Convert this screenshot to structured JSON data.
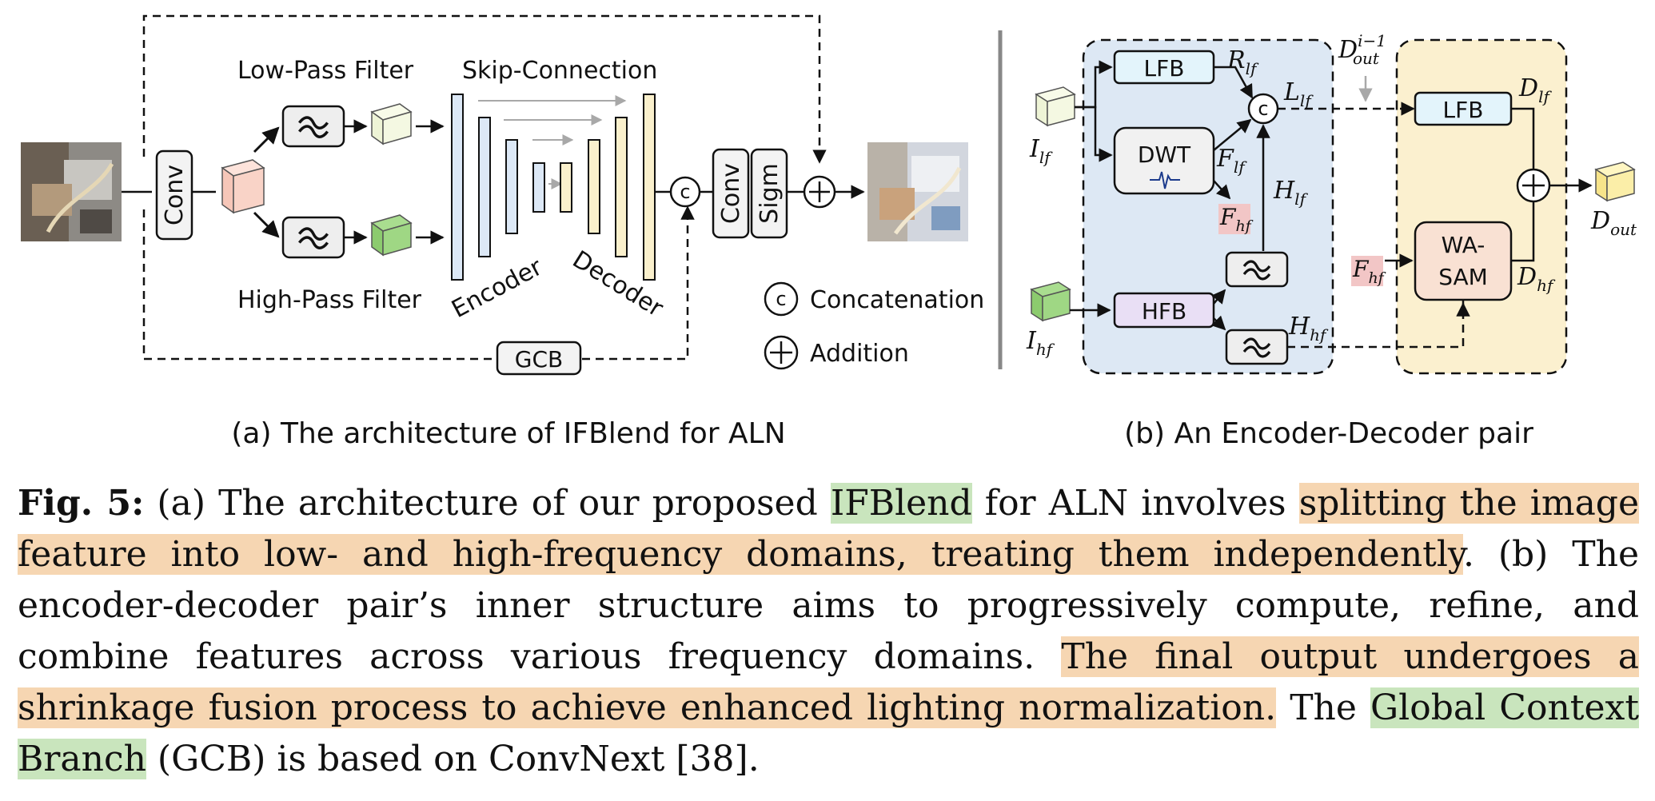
{
  "figure": {
    "panel_a": {
      "labels": {
        "conv": "Conv",
        "low_pass": "Low-Pass Filter",
        "high_pass": "High-Pass Filter",
        "skip": "Skip-Connection",
        "encoder": "Encoder",
        "decoder": "Decoder",
        "concat_symbol": "c",
        "conv2": "Conv",
        "sigm": "Sigm",
        "gcb": "GCB"
      },
      "legend": {
        "concatenation": "Concatenation",
        "addition": "Addition"
      },
      "subcaption": "(a) The architecture of IFBlend for ALN"
    },
    "panel_b": {
      "labels": {
        "lfb_enc": "LFB",
        "dwt": "DWT",
        "hfb": "HFB",
        "lfb_dec": "LFB",
        "wasam_line1": "WA-",
        "wasam_line2": "SAM",
        "concat_symbol": "c"
      },
      "symbols": {
        "I_lf": "I",
        "I_lf_sub": "lf",
        "I_hf": "I",
        "I_hf_sub": "hf",
        "R_lf": "R",
        "R_lf_sub": "lf",
        "L_lf": "L",
        "L_lf_sub": "lf",
        "F_lf": "F",
        "F_lf_sub": "lf",
        "F_hf": "F",
        "F_hf_sub": "hf",
        "H_lf": "H",
        "H_lf_sub": "lf",
        "H_hf": "H",
        "H_hf_sub": "hf",
        "D_out_prev": "D",
        "D_out_prev_sup": "i−1",
        "D_out_prev_sub": "out",
        "D_lf": "D",
        "D_lf_sub": "lf",
        "D_hf": "D",
        "D_hf_sub": "hf",
        "F_hf2": "F",
        "F_hf2_sub": "hf",
        "D_out": "D",
        "D_out_sub": "out"
      },
      "subcaption": "(b) An Encoder-Decoder pair"
    }
  },
  "caption": {
    "fig_label": "Fig. 5:",
    "t1": " (a) The architecture of our proposed ",
    "h1": "IFBlend",
    "t2": " for ALN involves ",
    "h2": "splitting the image feature into low- and high-frequency domains, treating them independently",
    "t3": ". (b) The encoder-decoder pair’s inner structure aims to progressively compute, refine, and combine features across various frequency domains. ",
    "h3": "The final output undergoes a shrinkage fusion process to achieve enhanced lighting normalization.",
    "t4": " The ",
    "h4": "Global Context Branch",
    "t5": " (GCB) is based on ConvNext [38]."
  },
  "colors": {
    "highlight_green": "#c9e5bd",
    "highlight_orange": "#f6d6b2",
    "encoder_panel": "#dde8f4",
    "decoder_panel": "#fbf0cf",
    "lfb_fill": "#e3f4fb",
    "hfb_fill": "#e9dff5",
    "fhf_tag": "#f2c6c6"
  }
}
